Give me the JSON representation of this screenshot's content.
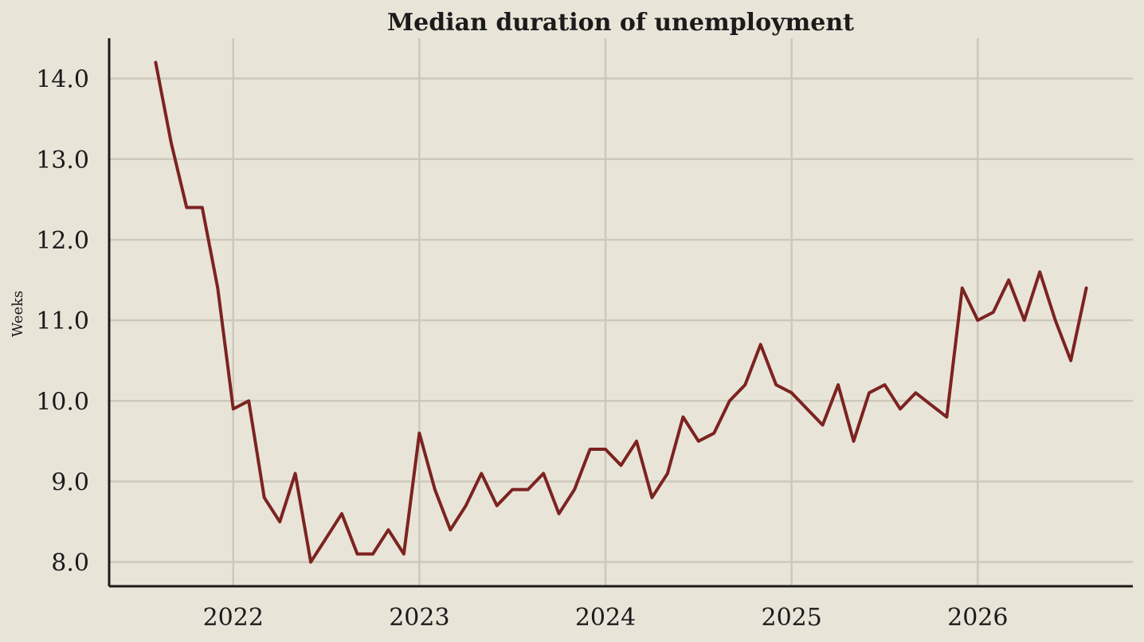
{
  "chart_data": {
    "type": "line",
    "title": "Median duration of unemployment",
    "xlabel": "",
    "ylabel": "Weeks",
    "x_ticks": [
      "2022",
      "2023",
      "2024",
      "2025",
      "2026"
    ],
    "y_ticks": [
      "8.0",
      "9.0",
      "10.0",
      "11.0",
      "12.0",
      "13.0",
      "14.0"
    ],
    "xlim": [
      "2021-05",
      "2026-11"
    ],
    "ylim": [
      7.7,
      14.5
    ],
    "grid": true,
    "series": [
      {
        "x": [
          "2021-08",
          "2021-09",
          "2021-10",
          "2021-11",
          "2021-12",
          "2022-01",
          "2022-02",
          "2022-03",
          "2022-04",
          "2022-05",
          "2022-06",
          "2022-07",
          "2022-08",
          "2022-09",
          "2022-10",
          "2022-11",
          "2022-12",
          "2023-01",
          "2023-02",
          "2023-03",
          "2023-04",
          "2023-05",
          "2023-06",
          "2023-07",
          "2023-08",
          "2023-09",
          "2023-10",
          "2023-11",
          "2023-12",
          "2024-01",
          "2024-02",
          "2024-03",
          "2024-04",
          "2024-05",
          "2024-06",
          "2024-07",
          "2024-08",
          "2024-09",
          "2024-10",
          "2024-11",
          "2024-12",
          "2025-01",
          "2025-02",
          "2025-03",
          "2025-04",
          "2025-05",
          "2025-06",
          "2025-07",
          "2025-08",
          "2025-09",
          "2025-10",
          "2025-11",
          "2025-12",
          "2026-01",
          "2026-02",
          "2026-03",
          "2026-04",
          "2026-05",
          "2026-06",
          "2026-07",
          "2026-08"
        ],
        "values": [
          14.2,
          13.2,
          12.4,
          12.4,
          11.4,
          9.9,
          10.0,
          8.8,
          8.5,
          9.1,
          8.0,
          8.3,
          8.6,
          8.1,
          8.1,
          8.4,
          8.1,
          9.6,
          8.9,
          8.4,
          8.7,
          9.1,
          8.7,
          8.9,
          8.9,
          9.1,
          8.6,
          8.9,
          9.4,
          9.4,
          9.2,
          9.5,
          8.8,
          9.1,
          9.8,
          9.5,
          9.6,
          10.0,
          10.2,
          10.7,
          10.2,
          10.1,
          9.9,
          9.7,
          10.2,
          9.5,
          10.1,
          10.2,
          9.9,
          10.1,
          9.95,
          9.8,
          11.4,
          11.0,
          11.1,
          11.5,
          11.0,
          11.6,
          11.0,
          10.5,
          11.4
        ]
      }
    ],
    "colors": {
      "background": "#e8e4d8",
      "line": "#7c2320",
      "grid": "#cdc8bb",
      "axis": "#1b1b1b"
    }
  }
}
